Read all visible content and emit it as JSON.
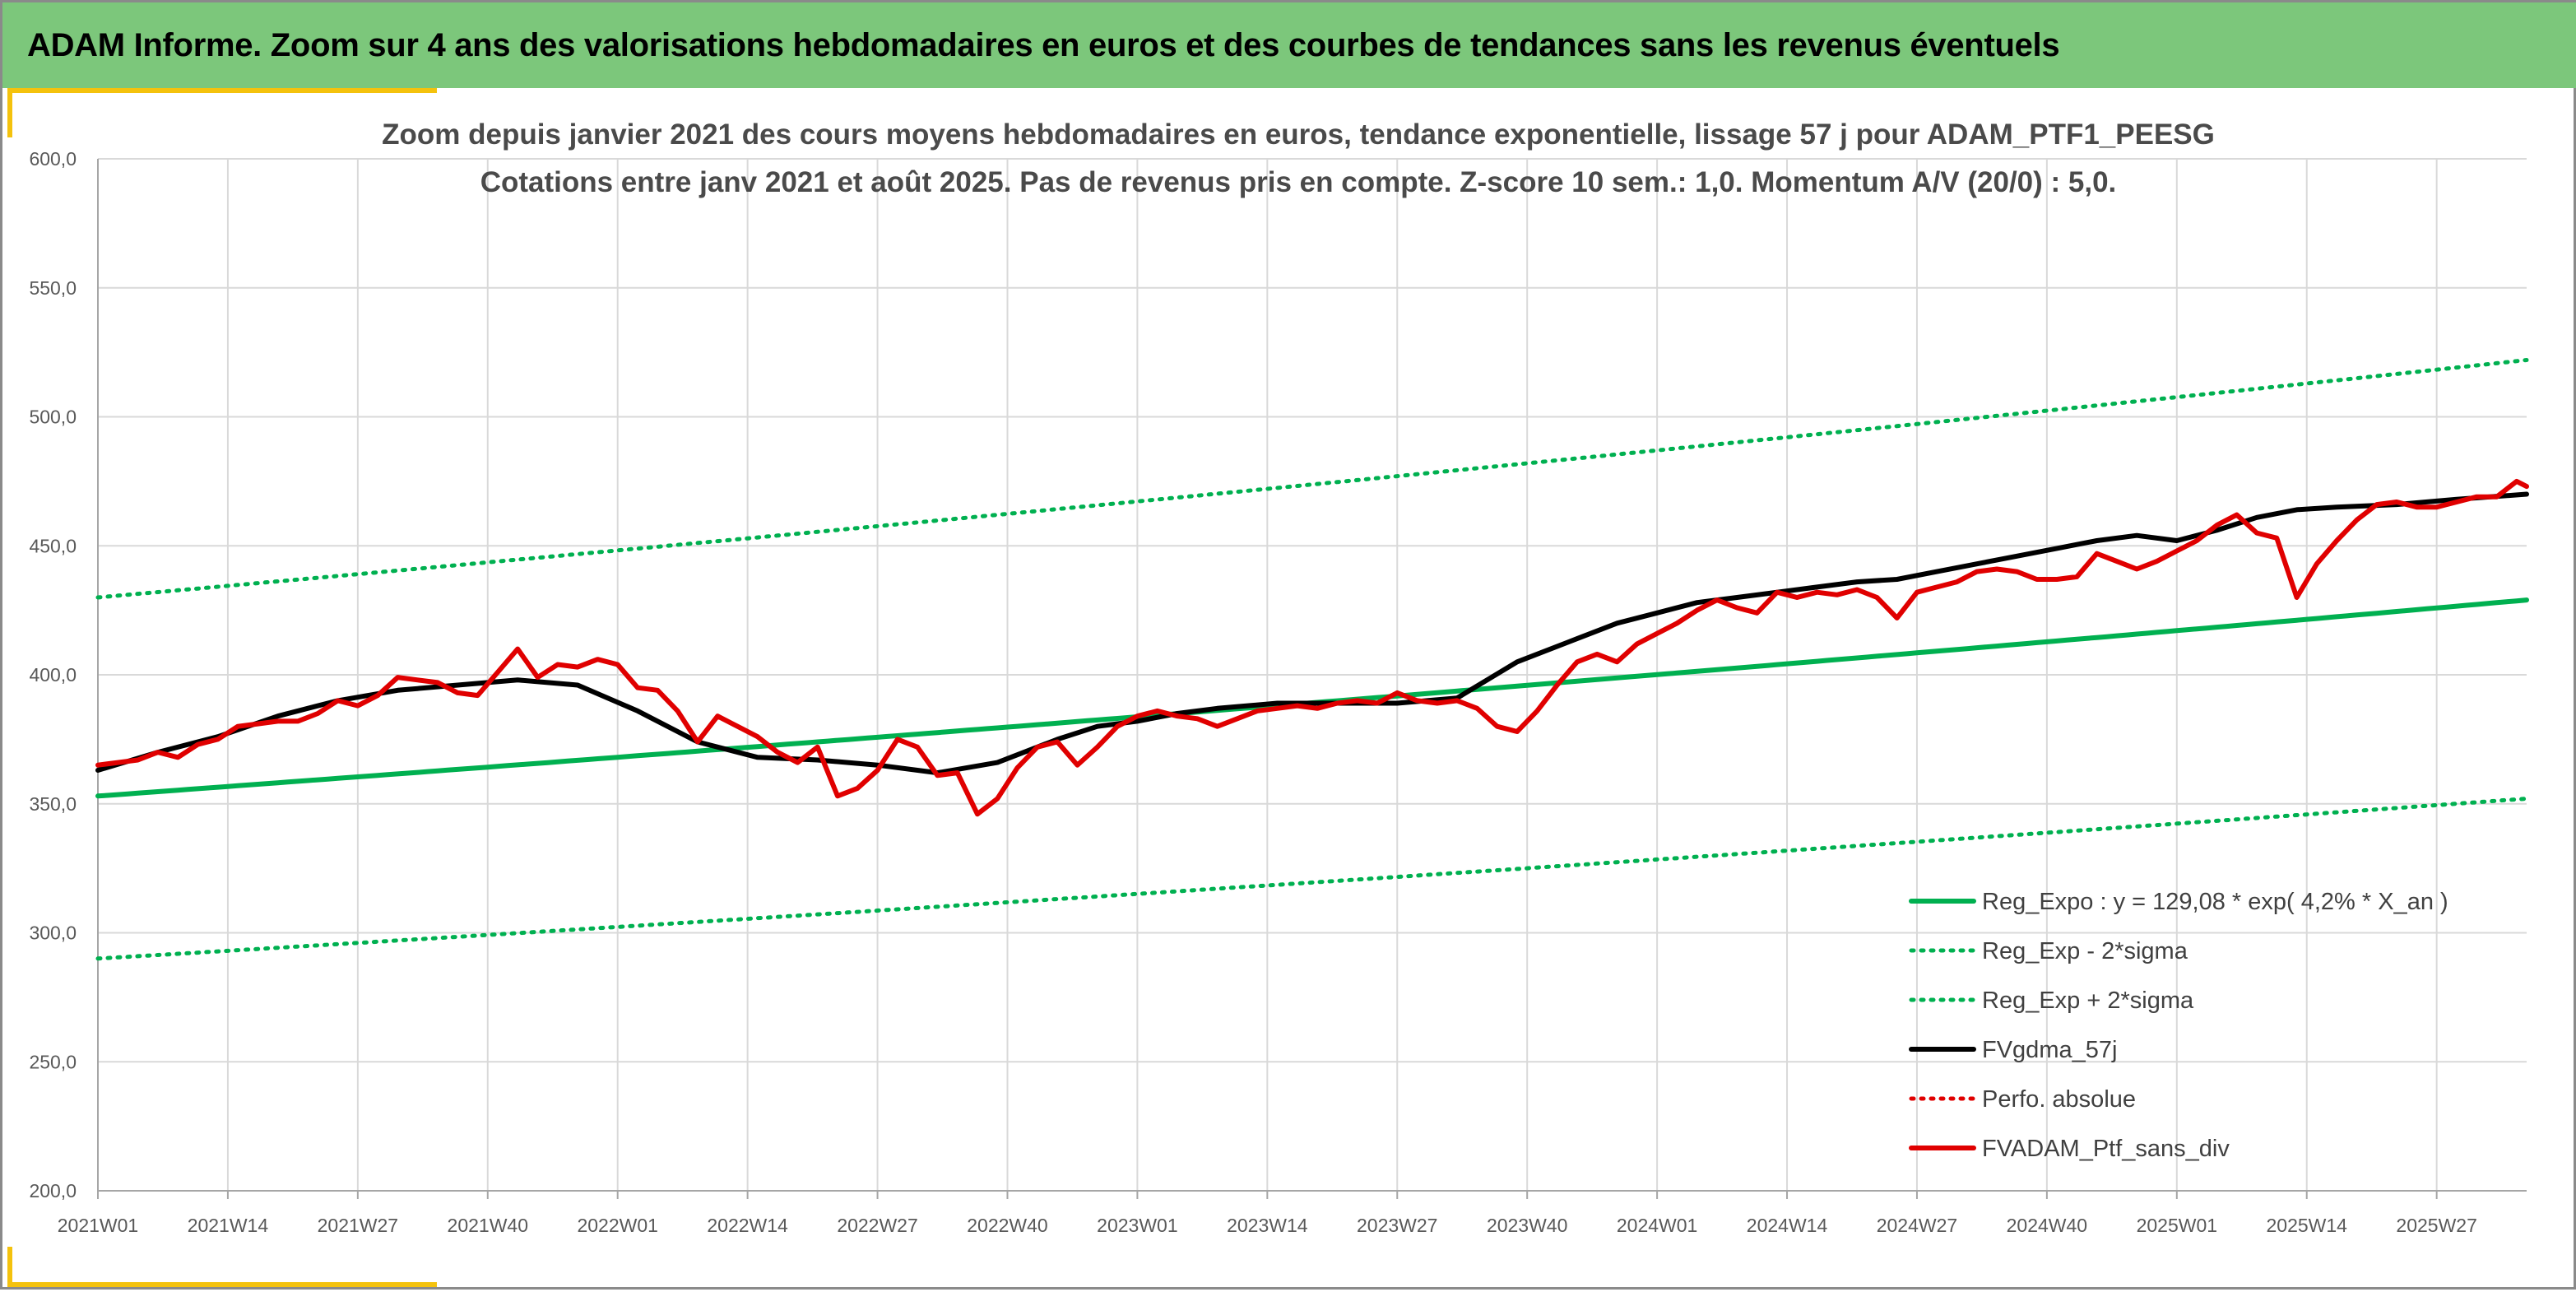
{
  "header": {
    "title": "ADAM Informe. Zoom sur 4 ans des valorisations hebdomadaires en euros et des courbes de tendances sans les revenus éventuels",
    "background": "#7cc77b",
    "accent": "#f4c20d"
  },
  "chart_data": {
    "type": "line",
    "title": "Zoom depuis janvier 2021 des cours moyens hebdomadaires en euros, tendance exponentielle, lissage 57 j pour ADAM_PTF1_PEESG",
    "subtitle": "Cotations entre janv 2021 et août 2025. Pas de revenus pris en compte. Z-score 10 sem.: 1,0. Momentum A/V (20/0) : 5,0.",
    "xlabel": "",
    "ylabel": "",
    "ylim": [
      200,
      600
    ],
    "y_ticks": [
      "200,0",
      "250,0",
      "300,0",
      "350,0",
      "400,0",
      "450,0",
      "500,0",
      "550,0",
      "600,0"
    ],
    "x_ticks": [
      "2021W01",
      "2021W14",
      "2021W27",
      "2021W40",
      "2022W01",
      "2022W14",
      "2022W27",
      "2022W40",
      "2023W01",
      "2023W14",
      "2023W27",
      "2023W40",
      "2024W01",
      "2024W14",
      "2024W27",
      "2024W40",
      "2025W01",
      "2025W14",
      "2025W27"
    ],
    "x_range_weeks": [
      0,
      243
    ],
    "grid": true,
    "legend_position": "bottom-right",
    "legend": [
      {
        "label": "Reg_Expo : y = 129,08 * exp( 4,2% *  X_an )",
        "color": "#00b050",
        "style": "solid",
        "width": 6
      },
      {
        "label": "Reg_Exp - 2*sigma",
        "color": "#00b050",
        "style": "dotted",
        "width": 5
      },
      {
        "label": "Reg_Exp + 2*sigma",
        "color": "#00b050",
        "style": "dotted",
        "width": 5
      },
      {
        "label": "FVgdma_57j",
        "color": "#000000",
        "style": "solid",
        "width": 6
      },
      {
        "label": "Perfo. absolue",
        "color": "#e00000",
        "style": "dotted",
        "width": 5
      },
      {
        "label": "FVADAM_Ptf_sans_div",
        "color": "#e00000",
        "style": "solid",
        "width": 6
      }
    ],
    "series": [
      {
        "name": "Reg_Expo : y = 129,08 * exp( 4,2% *  X_an )",
        "color": "#00b050",
        "style": "solid",
        "width": 6,
        "x": [
          0,
          243
        ],
        "y": [
          353,
          429
        ],
        "interpolation": "exponential"
      },
      {
        "name": "Reg_Exp - 2*sigma",
        "color": "#00b050",
        "style": "dotted",
        "width": 5,
        "x": [
          0,
          243
        ],
        "y": [
          290,
          352
        ],
        "interpolation": "exponential"
      },
      {
        "name": "Reg_Exp + 2*sigma",
        "color": "#00b050",
        "style": "dotted",
        "width": 5,
        "x": [
          0,
          243
        ],
        "y": [
          430,
          522
        ],
        "interpolation": "exponential"
      },
      {
        "name": "FVgdma_57j",
        "color": "#000000",
        "style": "solid",
        "width": 6,
        "x": [
          0,
          6,
          12,
          18,
          24,
          30,
          36,
          42,
          48,
          54,
          60,
          66,
          72,
          78,
          84,
          90,
          96,
          100,
          104,
          108,
          112,
          118,
          124,
          130,
          136,
          142,
          148,
          152,
          156,
          160,
          164,
          168,
          172,
          176,
          180,
          184,
          188,
          192,
          196,
          200,
          204,
          208,
          212,
          216,
          220,
          224,
          230,
          236,
          243
        ],
        "y": [
          363,
          370,
          376,
          384,
          390,
          394,
          396,
          398,
          396,
          386,
          374,
          368,
          367,
          365,
          362,
          366,
          375,
          380,
          382,
          385,
          387,
          389,
          389,
          389,
          391,
          405,
          414,
          420,
          424,
          428,
          430,
          432,
          434,
          436,
          437,
          440,
          443,
          446,
          449,
          452,
          454,
          452,
          456,
          461,
          464,
          465,
          466,
          468,
          470
        ]
      },
      {
        "name": "FVADAM_Ptf_sans_div",
        "color": "#e00000",
        "style": "solid",
        "width": 6,
        "x": [
          0,
          2,
          4,
          6,
          8,
          10,
          12,
          14,
          16,
          18,
          20,
          22,
          24,
          26,
          28,
          30,
          32,
          34,
          36,
          38,
          40,
          42,
          44,
          46,
          48,
          50,
          52,
          54,
          56,
          58,
          60,
          62,
          64,
          66,
          68,
          70,
          72,
          74,
          76,
          78,
          80,
          82,
          84,
          86,
          88,
          90,
          92,
          94,
          96,
          98,
          100,
          102,
          104,
          106,
          108,
          110,
          112,
          114,
          116,
          118,
          120,
          122,
          124,
          126,
          128,
          130,
          132,
          134,
          136,
          138,
          140,
          142,
          144,
          146,
          148,
          150,
          152,
          154,
          156,
          158,
          160,
          162,
          164,
          166,
          168,
          170,
          172,
          174,
          176,
          178,
          180,
          182,
          184,
          186,
          188,
          190,
          192,
          194,
          196,
          198,
          200,
          202,
          204,
          206,
          208,
          210,
          212,
          214,
          216,
          218,
          220,
          222,
          224,
          226,
          228,
          230,
          232,
          234,
          236,
          238,
          240,
          242,
          243
        ],
        "y": [
          365,
          366,
          367,
          370,
          368,
          373,
          375,
          380,
          381,
          382,
          382,
          385,
          390,
          388,
          392,
          399,
          398,
          397,
          393,
          392,
          401,
          410,
          399,
          404,
          403,
          406,
          404,
          395,
          394,
          386,
          374,
          384,
          380,
          376,
          370,
          366,
          372,
          353,
          356,
          363,
          375,
          372,
          361,
          362,
          346,
          352,
          364,
          372,
          374,
          365,
          372,
          380,
          384,
          386,
          384,
          383,
          380,
          383,
          386,
          387,
          388,
          387,
          389,
          390,
          389,
          393,
          390,
          389,
          390,
          387,
          380,
          378,
          386,
          396,
          405,
          408,
          405,
          412,
          416,
          420,
          425,
          429,
          426,
          424,
          432,
          430,
          432,
          431,
          433,
          430,
          422,
          432,
          434,
          436,
          440,
          441,
          440,
          437,
          437,
          438,
          447,
          444,
          441,
          444,
          448,
          452,
          458,
          462,
          455,
          453,
          430,
          443,
          452,
          460,
          466,
          467,
          465,
          465,
          467,
          469,
          469,
          475,
          473
        ]
      }
    ]
  }
}
